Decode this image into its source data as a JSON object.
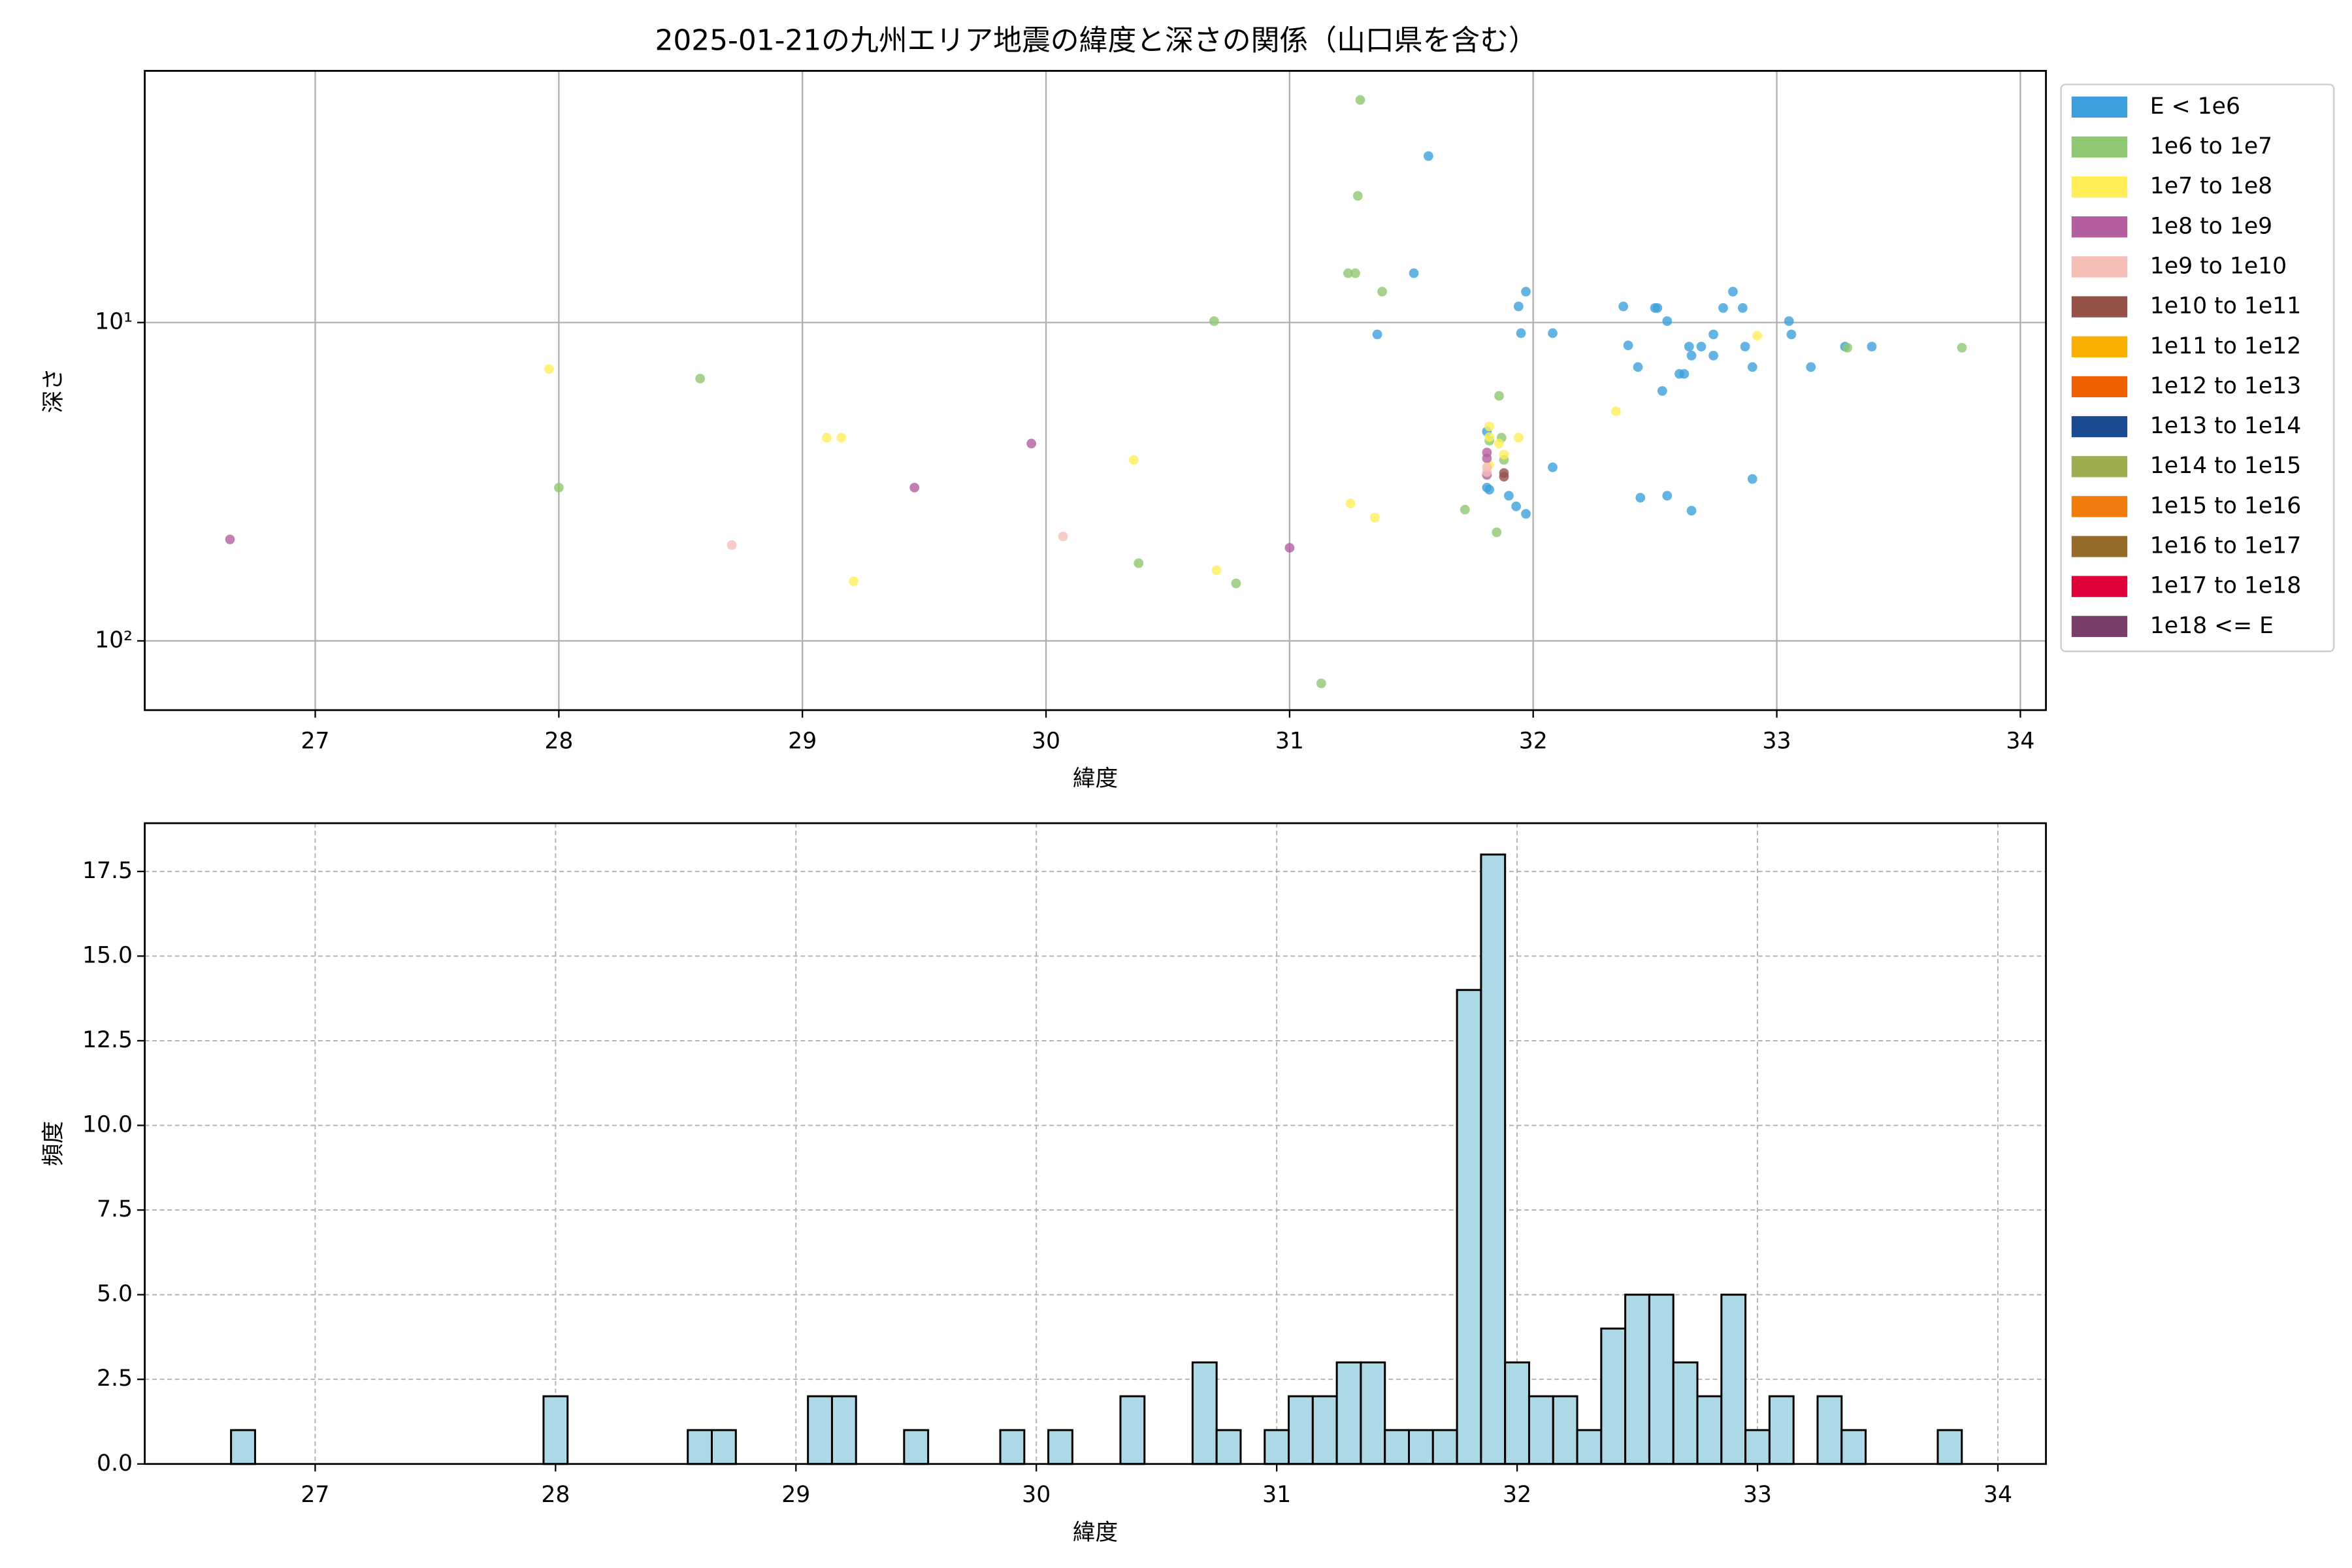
{
  "chart_data": [
    {
      "type": "scatter",
      "title": "2025-01-21の九州エリア地震の緯度と深さの関係（山口県を含む）",
      "xlabel": "緯度",
      "ylabel": "深さ",
      "xlim": [
        26.3,
        34.105
      ],
      "xticks": [
        27,
        28,
        29,
        30,
        31,
        32,
        33,
        34
      ],
      "yscale": "log",
      "yinverted": true,
      "ylim": [
        1.62,
        165
      ],
      "yticks": [
        {
          "value": 10,
          "label": "10¹"
        },
        {
          "value": 100,
          "label": "10²"
        }
      ],
      "grid": true,
      "legend": "outside-right",
      "series": [
        {
          "name": "E < 1e6",
          "color": "#3ca0dc",
          "x": [
            31.57,
            31.51,
            31.36,
            31.81,
            31.81,
            31.82,
            31.9,
            31.93,
            31.97,
            31.94,
            31.97,
            31.95,
            32.08,
            32.08,
            32.37,
            32.39,
            32.43,
            32.44,
            32.5,
            32.51,
            32.55,
            32.53,
            32.55,
            32.6,
            32.62,
            32.64,
            32.65,
            32.65,
            32.69,
            32.74,
            32.74,
            32.78,
            32.82,
            32.86,
            32.87,
            32.9,
            32.9,
            33.05,
            33.06,
            33.14,
            33.28,
            33.39
          ],
          "values": [
            3.0,
            7,
            10.9,
            22,
            33,
            33.5,
            35,
            37.8,
            39.9,
            8.9,
            8,
            10.8,
            10.8,
            28.5,
            8.9,
            11.8,
            13.8,
            35.5,
            9,
            9,
            9.9,
            16.4,
            35,
            14.5,
            14.5,
            11.9,
            12.7,
            39,
            11.9,
            10.9,
            12.7,
            9,
            8,
            9,
            11.9,
            13.8,
            31,
            9.9,
            10.9,
            13.8,
            11.9,
            11.9
          ]
        },
        {
          "name": "1e6 to 1e7",
          "color": "#8fc870",
          "x": [
            28.0,
            28.58,
            30.38,
            30.78,
            30.69,
            31.13,
            31.24,
            31.27,
            31.28,
            31.29,
            31.38,
            31.72,
            31.85,
            31.86,
            31.82,
            31.87,
            31.88,
            33.29,
            33.76
          ],
          "values": [
            33,
            15,
            57,
            66,
            9.9,
            136,
            7,
            7,
            4.0,
            2.0,
            8,
            38.7,
            45.6,
            17,
            23.5,
            23,
            27,
            12,
            12
          ]
        },
        {
          "name": "1e7 to 1e8",
          "color": "#ffee58",
          "x": [
            27.96,
            29.1,
            29.16,
            29.21,
            30.36,
            30.7,
            31.25,
            31.35,
            32.34,
            32.92,
            31.82,
            31.82,
            31.86,
            31.88,
            31.94,
            31.82
          ],
          "values": [
            14,
            23,
            23,
            65,
            27,
            60,
            37,
            41,
            19,
            11,
            21.2,
            22.9,
            24,
            26,
            23,
            28
          ]
        },
        {
          "name": "1e8 to 1e9",
          "color": "#b45ea0",
          "x": [
            26.65,
            29.46,
            29.94,
            31.0,
            31.81,
            31.81,
            31.81
          ],
          "values": [
            48,
            33,
            24,
            51,
            25.6,
            26.7,
            30.1
          ]
        },
        {
          "name": "1e9 to 1e10",
          "color": "#f5bfb8",
          "x": [
            28.71,
            30.07,
            31.81,
            31.81
          ],
          "values": [
            50,
            47,
            29.5,
            28.5
          ]
        },
        {
          "name": "1e10 to 1e11",
          "color": "#955048",
          "x": [
            31.88,
            31.88
          ],
          "values": [
            29.7,
            30.5
          ]
        },
        {
          "name": "1e11 to 1e12",
          "color": "#f9b000",
          "x": [],
          "values": []
        },
        {
          "name": "1e12 to 1e13",
          "color": "#ef6000",
          "x": [],
          "values": []
        },
        {
          "name": "1e13 to 1e14",
          "color": "#1a4a8f",
          "x": [],
          "values": []
        },
        {
          "name": "1e14 to 1e15",
          "color": "#9ead4f",
          "x": [],
          "values": []
        },
        {
          "name": "1e15 to 1e16",
          "color": "#ef7c0c",
          "x": [],
          "values": []
        },
        {
          "name": "1e16 to 1e17",
          "color": "#956c2a",
          "x": [],
          "values": []
        },
        {
          "name": "1e17 to 1e18",
          "color": "#e0003a",
          "x": [],
          "values": []
        },
        {
          "name": "1e18 <= E",
          "color": "#7a3e6a",
          "x": [],
          "values": []
        }
      ]
    },
    {
      "type": "histogram",
      "xlabel": "緯度",
      "ylabel": "頻度",
      "color": "#add8e6",
      "edgecolor": "#000000",
      "xlim": [
        26.291,
        34.2
      ],
      "xticks": [
        27,
        28,
        29,
        30,
        31,
        32,
        33,
        34
      ],
      "ylim": [
        0,
        18.925
      ],
      "yticks": [
        {
          "value": 0,
          "label": "0.0"
        },
        2.5,
        {
          "value": 5,
          "label": "5.0"
        },
        7.5,
        {
          "value": 10,
          "label": "10.0"
        },
        12.5,
        {
          "value": 15,
          "label": "15.0"
        },
        17.5
      ],
      "grid": "dashed",
      "bins": [
        26.65,
        26.75,
        26.85,
        26.95,
        27.05,
        27.15,
        27.25,
        27.35,
        27.45,
        27.55,
        27.65,
        27.75,
        27.85,
        27.95,
        28.05,
        28.15,
        28.25,
        28.35,
        28.45,
        28.55,
        28.65,
        28.75,
        28.85,
        28.95,
        29.05,
        29.15,
        29.25,
        29.35,
        29.45,
        29.55,
        29.65,
        29.75,
        29.85,
        29.95,
        30.05,
        30.15,
        30.25,
        30.35,
        30.45,
        30.55,
        30.65,
        30.75,
        30.85,
        30.95,
        31.05,
        31.15,
        31.25,
        31.35,
        31.45,
        31.55,
        31.65,
        31.75,
        31.85,
        31.95,
        32.05,
        32.15,
        32.25,
        32.35,
        32.45,
        32.55,
        32.65,
        32.75,
        32.85,
        32.95,
        33.05,
        33.15,
        33.25,
        33.35,
        33.45,
        33.55,
        33.65,
        33.75,
        33.85
      ],
      "values": [
        1,
        0,
        0,
        0,
        0,
        0,
        0,
        0,
        0,
        0,
        0,
        0,
        0,
        2,
        0,
        0,
        0,
        0,
        0,
        1,
        1,
        0,
        0,
        0,
        2,
        2,
        0,
        0,
        1,
        0,
        0,
        0,
        1,
        0,
        1,
        0,
        0,
        2,
        0,
        0,
        3,
        1,
        0,
        1,
        2,
        2,
        3,
        3,
        1,
        1,
        1,
        14,
        18,
        3,
        2,
        2,
        1,
        4,
        5,
        5,
        3,
        2,
        5,
        1,
        2,
        0,
        2,
        1,
        0,
        0,
        0,
        1
      ]
    }
  ]
}
